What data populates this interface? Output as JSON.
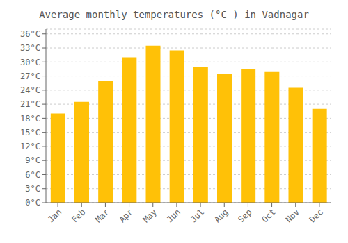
{
  "chart_data": {
    "type": "bar",
    "title": "Average monthly temperatures (°C ) in Vadnagar",
    "categories": [
      "Jan",
      "Feb",
      "Mar",
      "Apr",
      "May",
      "Jun",
      "Jul",
      "Aug",
      "Sep",
      "Oct",
      "Nov",
      "Dec"
    ],
    "values": [
      19.0,
      21.5,
      26.0,
      31.0,
      33.5,
      32.5,
      29.0,
      27.5,
      28.5,
      28.0,
      24.5,
      20.0
    ],
    "color": "#FFC107",
    "ylim": [
      0,
      37
    ],
    "yticks": [
      {
        "value": 0,
        "label": "0°C"
      },
      {
        "value": 3,
        "label": "3°C"
      },
      {
        "value": 6,
        "label": "6°C"
      },
      {
        "value": 9,
        "label": "9°C"
      },
      {
        "value": 12,
        "label": "12°C"
      },
      {
        "value": 15,
        "label": "15°C"
      },
      {
        "value": 18,
        "label": "18°C"
      },
      {
        "value": 21,
        "label": "21°C"
      },
      {
        "value": 24,
        "label": "24°C"
      },
      {
        "value": 27,
        "label": "27°C"
      },
      {
        "value": 30,
        "label": "30°C"
      },
      {
        "value": 33,
        "label": "33°C"
      },
      {
        "value": 36,
        "label": "36°C"
      }
    ],
    "grid": true
  }
}
